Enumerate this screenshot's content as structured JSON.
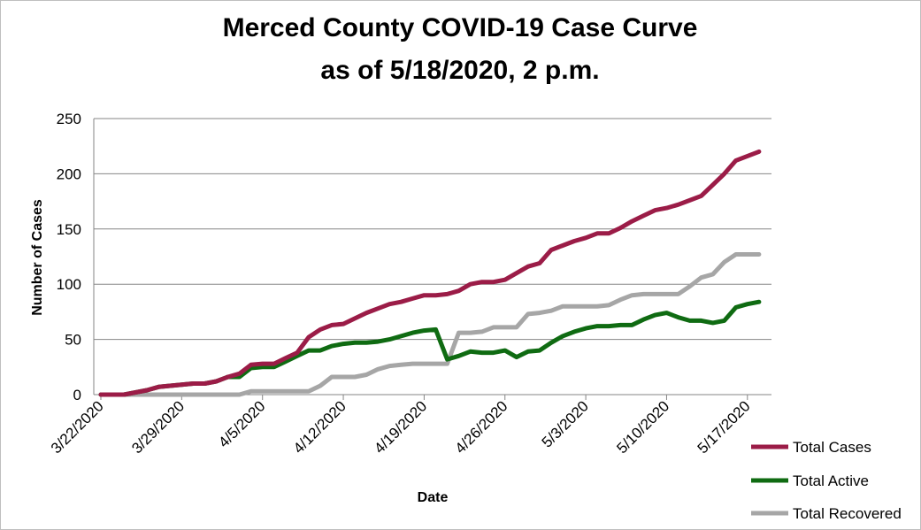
{
  "chart_data": {
    "type": "line",
    "title_lines": [
      "Merced County COVID-19 Case Curve",
      "as of 5/18/2020, 2 p.m."
    ],
    "xlabel": "Date",
    "ylabel": "Number of Cases",
    "ylim": [
      0,
      250
    ],
    "yticks": [
      0,
      50,
      100,
      150,
      200,
      250
    ],
    "grid": "horizontal",
    "legend_position": "bottom-right",
    "x_start": "3/22/2020",
    "x": [
      "3/22/2020",
      "3/23/2020",
      "3/24/2020",
      "3/25/2020",
      "3/26/2020",
      "3/27/2020",
      "3/28/2020",
      "3/29/2020",
      "3/30/2020",
      "3/31/2020",
      "4/1/2020",
      "4/2/2020",
      "4/3/2020",
      "4/4/2020",
      "4/5/2020",
      "4/6/2020",
      "4/7/2020",
      "4/8/2020",
      "4/9/2020",
      "4/10/2020",
      "4/11/2020",
      "4/12/2020",
      "4/13/2020",
      "4/14/2020",
      "4/15/2020",
      "4/16/2020",
      "4/17/2020",
      "4/18/2020",
      "4/19/2020",
      "4/20/2020",
      "4/21/2020",
      "4/22/2020",
      "4/23/2020",
      "4/24/2020",
      "4/25/2020",
      "4/26/2020",
      "4/27/2020",
      "4/28/2020",
      "4/29/2020",
      "4/30/2020",
      "5/1/2020",
      "5/2/2020",
      "5/3/2020",
      "5/4/2020",
      "5/5/2020",
      "5/6/2020",
      "5/7/2020",
      "5/8/2020",
      "5/9/2020",
      "5/10/2020",
      "5/11/2020",
      "5/12/2020",
      "5/13/2020",
      "5/14/2020",
      "5/15/2020",
      "5/16/2020",
      "5/17/2020",
      "5/18/2020"
    ],
    "x_tick_labels": [
      "3/22/2020",
      "3/29/2020",
      "4/5/2020",
      "4/12/2020",
      "4/19/2020",
      "4/26/2020",
      "5/3/2020",
      "5/10/2020",
      "5/17/2020"
    ],
    "series": [
      {
        "name": "Total Cases",
        "color": "#9b1c47",
        "values": [
          0,
          0,
          0,
          2,
          4,
          7,
          8,
          9,
          10,
          10,
          12,
          16,
          19,
          27,
          28,
          28,
          33,
          38,
          52,
          59,
          63,
          64,
          69,
          74,
          78,
          82,
          84,
          87,
          90,
          90,
          91,
          94,
          100,
          102,
          102,
          104,
          110,
          116,
          119,
          131,
          135,
          139,
          142,
          146,
          146,
          151,
          157,
          162,
          167,
          169,
          172,
          176,
          180,
          190,
          200,
          212,
          216,
          220
        ]
      },
      {
        "name": "Total Active",
        "color": "#0f6b12",
        "values": [
          0,
          0,
          0,
          2,
          4,
          7,
          8,
          9,
          10,
          10,
          12,
          16,
          16,
          24,
          25,
          25,
          30,
          35,
          40,
          40,
          44,
          46,
          47,
          47,
          48,
          50,
          53,
          56,
          58,
          59,
          32,
          35,
          39,
          38,
          38,
          40,
          34,
          39,
          40,
          47,
          53,
          57,
          60,
          62,
          62,
          63,
          63,
          68,
          72,
          74,
          70,
          67,
          67,
          65,
          67,
          79,
          82,
          84
        ]
      },
      {
        "name": "Total Recovered",
        "color": "#a6a6a6",
        "values": [
          0,
          0,
          0,
          0,
          0,
          0,
          0,
          0,
          0,
          0,
          0,
          0,
          0,
          3,
          3,
          3,
          3,
          3,
          3,
          8,
          16,
          16,
          16,
          18,
          23,
          26,
          27,
          28,
          28,
          28,
          28,
          56,
          56,
          57,
          61,
          61,
          61,
          73,
          74,
          76,
          80,
          80,
          80,
          80,
          81,
          86,
          90,
          91,
          91,
          91,
          91,
          98,
          106,
          109,
          120,
          127,
          127,
          127
        ]
      }
    ]
  }
}
